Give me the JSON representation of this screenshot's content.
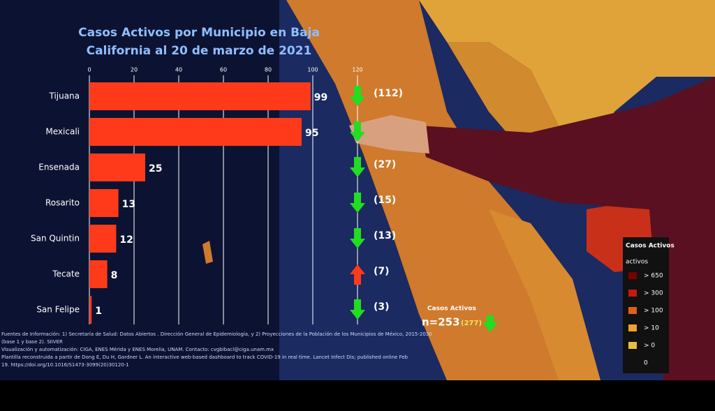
{
  "chart_data": {
    "type": "bar",
    "orientation": "horizontal",
    "title": "Casos Activos por Municipio en Baja California al 20 de marzo de 2021",
    "categories": [
      "Tijuana",
      "Mexicali",
      "Ensenada",
      "Rosarito",
      "San Quintin",
      "Tecate",
      "San Felipe"
    ],
    "values": [
      99,
      95,
      25,
      13,
      12,
      8,
      1
    ],
    "color": "#ff3a1a",
    "xlim": [
      0,
      120
    ],
    "xticks": [
      0,
      20,
      40,
      60,
      80,
      100,
      120
    ],
    "grid": true,
    "previous": {
      "values": [
        112,
        null,
        27,
        15,
        13,
        7,
        3
      ],
      "value_labels": [
        "(112)",
        null,
        "(27)",
        "(15)",
        "(13)",
        "(7)",
        "(3)"
      ]
    },
    "trend": [
      "down",
      "down",
      "down",
      "down",
      "down",
      "up",
      "down"
    ],
    "trend_colors": {
      "down": "#22dd22",
      "up": "#ff3a1a"
    },
    "total": {
      "label": "Casos Activos",
      "text": "n=253",
      "previous": "(277)"
    }
  },
  "legend": {
    "title": "Casos Activos",
    "subtitle": "activos",
    "items": [
      {
        "label": "> 650",
        "color": "#7a0000"
      },
      {
        "label": "> 300",
        "color": "#c41a10"
      },
      {
        "label": "> 100",
        "color": "#e0601a"
      },
      {
        "label": "> 10",
        "color": "#f0a030"
      },
      {
        "label": "> 0",
        "color": "#e8c040"
      },
      {
        "label": "0",
        "color": "#111111"
      }
    ]
  },
  "footnotes": [
    "Fuentes de Información: 1) Secretaría de Salud: Datos Abiertos . Dirección General de Epidemiología, y 2) Proyecciones de la Población de los Municipios de México, 2015-2030",
    "(base 1 y base 2). SIIVER",
    "Visualización y automatización: CIGA, ENES Mérida y ENES Morelia, UNAM. Contacto: cvgbibacl@ciga.unam.mx",
    "Plantilla reconstruida a partir de Dong E, Du H, Gardner L. An interactive web-based dashboard to track COVID-19 in real time. Lancet Infect Dis; published online Feb",
    "19. https://doi.org/10.1016/S1473-3099(20)30120-1"
  ]
}
